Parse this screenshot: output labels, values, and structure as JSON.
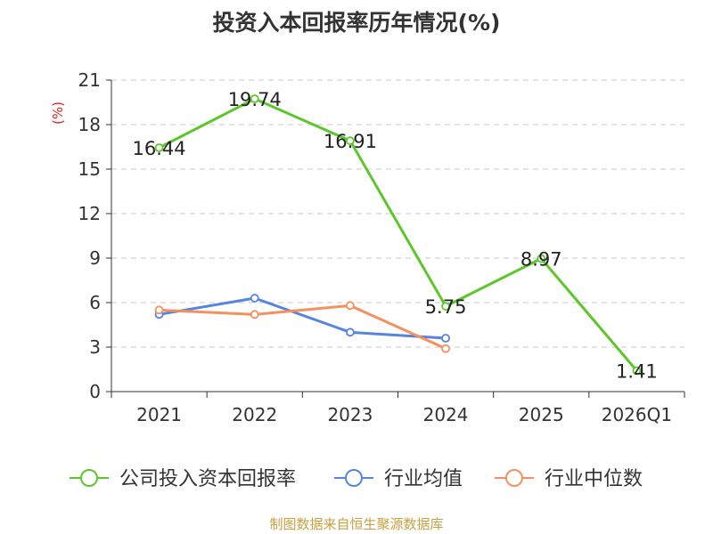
{
  "chart_data": {
    "type": "line",
    "title": "投资入本回报率历年情况(%)",
    "ylabel": "(%)",
    "xlabel": "",
    "categories": [
      "2021",
      "2022",
      "2023",
      "2024",
      "2025",
      "2026Q1"
    ],
    "ylim": [
      0,
      21
    ],
    "yticks": [
      0,
      3,
      6,
      9,
      12,
      15,
      18,
      21
    ],
    "grid": true,
    "legend_position": "bottom",
    "series": [
      {
        "name": "公司投入资本回报率",
        "color": "#5cc72b",
        "values": [
          16.44,
          19.74,
          16.91,
          5.75,
          8.97,
          1.41
        ],
        "labels": [
          "16.44",
          "19.74",
          "16.91",
          "5.75",
          "8.97",
          "1.41"
        ]
      },
      {
        "name": "行业均值",
        "color": "#5585e0",
        "values": [
          5.2,
          6.3,
          4.0,
          3.6,
          null,
          null
        ]
      },
      {
        "name": "行业中位数",
        "color": "#f5915e",
        "values": [
          5.5,
          5.2,
          5.8,
          2.9,
          null,
          null
        ]
      }
    ]
  },
  "source": "制图数据来自恒生聚源数据库"
}
